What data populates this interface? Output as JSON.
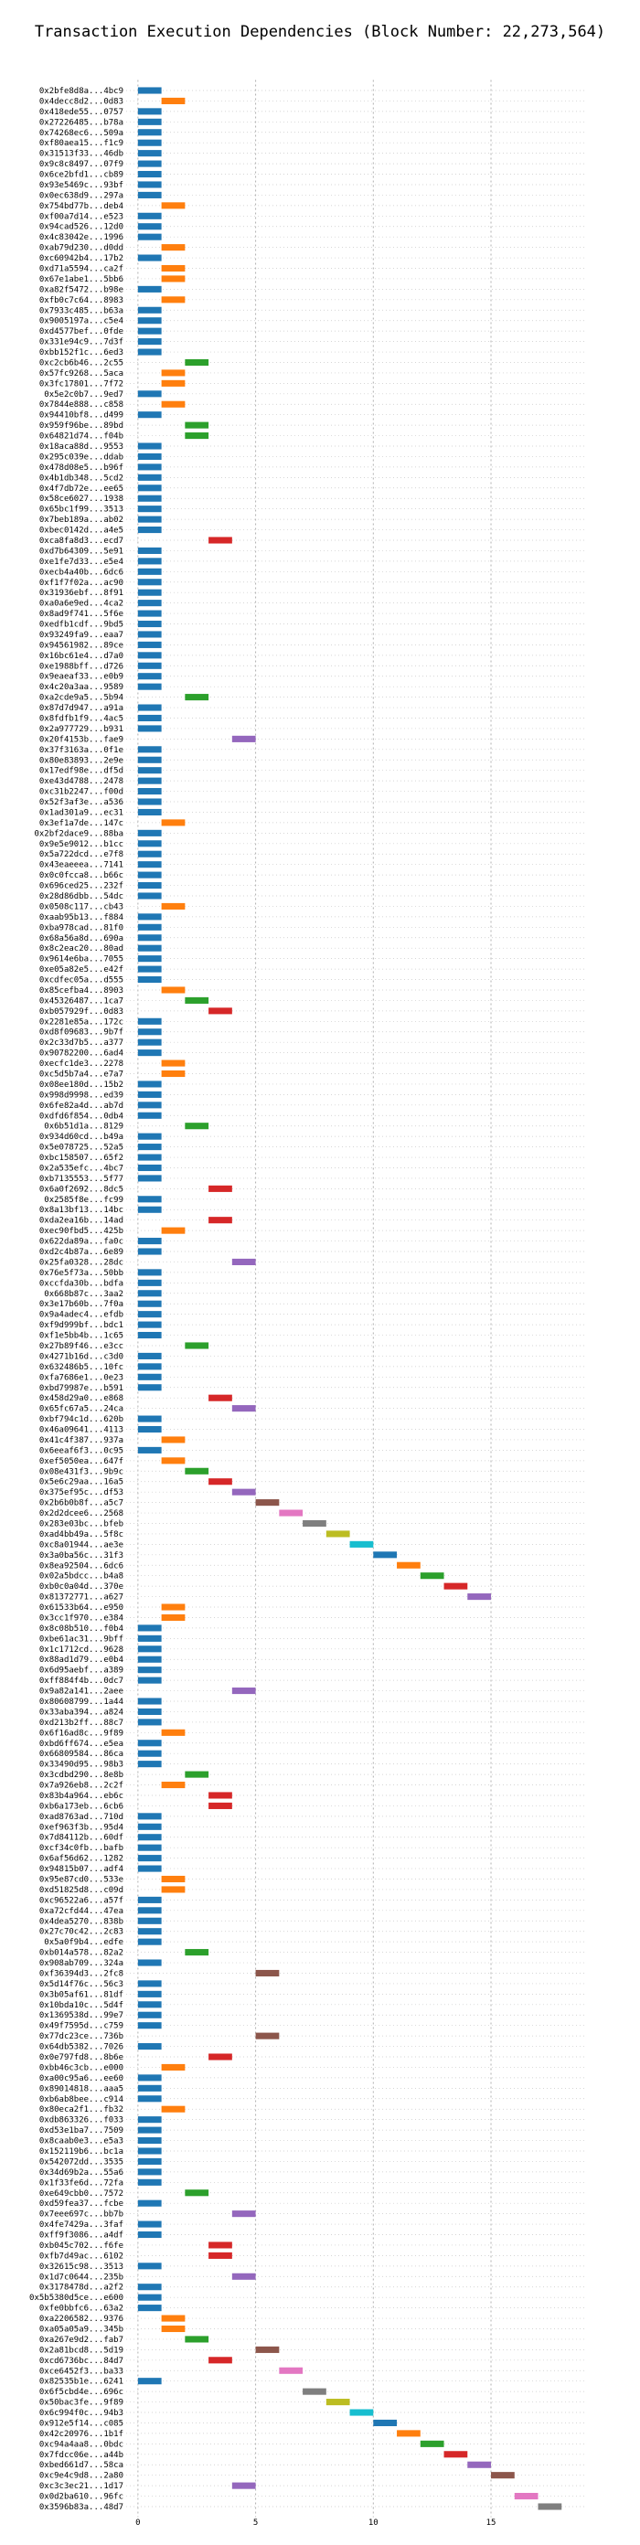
{
  "chart_data": {
    "type": "bar",
    "orientation": "horizontal",
    "title": "Transaction Execution Dependencies (Block Number: 22,273,564)",
    "xlabel": "",
    "ylabel": "",
    "xlim": [
      -0.5,
      19
    ],
    "xticks": [
      0,
      5,
      10,
      15
    ],
    "grid": true,
    "palette": [
      "#1f77b4",
      "#ff7f0e",
      "#2ca02c",
      "#d62728",
      "#9467bd",
      "#8c564b",
      "#e377c2",
      "#7f7f7f",
      "#bcbd22",
      "#17becf"
    ],
    "bar_width": 1,
    "transactions": [
      {
        "label": "0x2bfe8d8a...4bc9",
        "start": 0
      },
      {
        "label": "0x4decc8d2...0d83",
        "start": 1
      },
      {
        "label": "0x418ede55...0757",
        "start": 0
      },
      {
        "label": "0x27226485...b78a",
        "start": 0
      },
      {
        "label": "0x74268ec6...509a",
        "start": 0
      },
      {
        "label": "0xf80aea15...f1c9",
        "start": 0
      },
      {
        "label": "0x31513f33...46db",
        "start": 0
      },
      {
        "label": "0x9c8c8497...07f9",
        "start": 0
      },
      {
        "label": "0x6ce2bfd1...cb89",
        "start": 0
      },
      {
        "label": "0x93e5469c...93bf",
        "start": 0
      },
      {
        "label": "0x0ec638d9...297a",
        "start": 0
      },
      {
        "label": "0x754bd77b...deb4",
        "start": 1
      },
      {
        "label": "0xf00a7d14...e523",
        "start": 0
      },
      {
        "label": "0x94cad526...12d0",
        "start": 0
      },
      {
        "label": "0x4c83042e...1996",
        "start": 0
      },
      {
        "label": "0xab79d230...d0dd",
        "start": 1
      },
      {
        "label": "0xc60942b4...17b2",
        "start": 0
      },
      {
        "label": "0xd71a5594...ca2f",
        "start": 1
      },
      {
        "label": "0x67e1abe1...5bb6",
        "start": 1
      },
      {
        "label": "0xa82f5472...b98e",
        "start": 0
      },
      {
        "label": "0xfb0c7c64...8983",
        "start": 1
      },
      {
        "label": "0x7933c485...b63a",
        "start": 0
      },
      {
        "label": "0x9005197a...c5e4",
        "start": 0
      },
      {
        "label": "0xd4577bef...0fde",
        "start": 0
      },
      {
        "label": "0x331e94c9...7d3f",
        "start": 0
      },
      {
        "label": "0xbb152f1c...6ed3",
        "start": 0
      },
      {
        "label": "0xc2cb6b46...2c55",
        "start": 2
      },
      {
        "label": "0x57fc9268...5aca",
        "start": 1
      },
      {
        "label": "0x3fc17801...7f72",
        "start": 1
      },
      {
        "label": "0x5e2c0b7...9ed7",
        "start": 0
      },
      {
        "label": "0x7844e888...c858",
        "start": 1
      },
      {
        "label": "0x94410bf8...d499",
        "start": 0
      },
      {
        "label": "0x959f96be...89bd",
        "start": 2
      },
      {
        "label": "0x64821d74...f04b",
        "start": 2
      },
      {
        "label": "0x18aca88d...9553",
        "start": 0
      },
      {
        "label": "0x295c039e...ddab",
        "start": 0
      },
      {
        "label": "0x478d08e5...b96f",
        "start": 0
      },
      {
        "label": "0x4b1db348...5cd2",
        "start": 0
      },
      {
        "label": "0x4f7db72e...ee65",
        "start": 0
      },
      {
        "label": "0x58ce6027...1938",
        "start": 0
      },
      {
        "label": "0x65bc1f99...3513",
        "start": 0
      },
      {
        "label": "0x7beb189a...ab02",
        "start": 0
      },
      {
        "label": "0xbec0142d...a4e5",
        "start": 0
      },
      {
        "label": "0xca8fa8d3...ecd7",
        "start": 3
      },
      {
        "label": "0xd7b64309...5e91",
        "start": 0
      },
      {
        "label": "0xe1fe7d33...e5e4",
        "start": 0
      },
      {
        "label": "0xecb4a40b...6dc6",
        "start": 0
      },
      {
        "label": "0xf1f7f02a...ac90",
        "start": 0
      },
      {
        "label": "0x31936ebf...8f91",
        "start": 0
      },
      {
        "label": "0xa0a6e9ed...4ca2",
        "start": 0
      },
      {
        "label": "0x8ad9f741...5f6e",
        "start": 0
      },
      {
        "label": "0xedfb1cdf...9bd5",
        "start": 0
      },
      {
        "label": "0x93249fa9...eaa7",
        "start": 0
      },
      {
        "label": "0x94561982...89ce",
        "start": 0
      },
      {
        "label": "0x16bc61e4...d7a0",
        "start": 0
      },
      {
        "label": "0xe1988bff...d726",
        "start": 0
      },
      {
        "label": "0x9eaeaf33...e0b9",
        "start": 0
      },
      {
        "label": "0x4c20a3aa...9589",
        "start": 0
      },
      {
        "label": "0xa2cde9a5...5b94",
        "start": 2
      },
      {
        "label": "0x87d7d947...a91a",
        "start": 0
      },
      {
        "label": "0x8fdfb1f9...4ac5",
        "start": 0
      },
      {
        "label": "0x2a977729...b931",
        "start": 0
      },
      {
        "label": "0x20f4153b...fae9",
        "start": 4
      },
      {
        "label": "0x37f3163a...0f1e",
        "start": 0
      },
      {
        "label": "0x80e83893...2e9e",
        "start": 0
      },
      {
        "label": "0x17edf98e...df5d",
        "start": 0
      },
      {
        "label": "0xe43d4788...2478",
        "start": 0
      },
      {
        "label": "0xc31b2247...f00d",
        "start": 0
      },
      {
        "label": "0x52f3af3e...a536",
        "start": 0
      },
      {
        "label": "0x1ad301a9...ec31",
        "start": 0
      },
      {
        "label": "0x3ef1a7de...147c",
        "start": 1
      },
      {
        "label": "0x2bf2dace9...88ba",
        "start": 0
      },
      {
        "label": "0x9e5e9012...b1cc",
        "start": 0
      },
      {
        "label": "0x5a722dcd...e7f8",
        "start": 0
      },
      {
        "label": "0x43eaeeea...7141",
        "start": 0
      },
      {
        "label": "0x0c0fcca8...b66c",
        "start": 0
      },
      {
        "label": "0x696ced25...232f",
        "start": 0
      },
      {
        "label": "0x28d86dbb...54dc",
        "start": 0
      },
      {
        "label": "0x0508c117...cb43",
        "start": 1
      },
      {
        "label": "0xaab95b13...f884",
        "start": 0
      },
      {
        "label": "0xba978cad...81f0",
        "start": 0
      },
      {
        "label": "0x68a56a8d...690a",
        "start": 0
      },
      {
        "label": "0x8c2eac20...80ad",
        "start": 0
      },
      {
        "label": "0x9614e6ba...7055",
        "start": 0
      },
      {
        "label": "0xe05a82e5...e42f",
        "start": 0
      },
      {
        "label": "0xcdfec05a...d555",
        "start": 0
      },
      {
        "label": "0x85cefba4...8903",
        "start": 1
      },
      {
        "label": "0x45326487...1ca7",
        "start": 2
      },
      {
        "label": "0xb057929f...0d83",
        "start": 3
      },
      {
        "label": "0x2281e85a...172c",
        "start": 0
      },
      {
        "label": "0xd8f09683...9b7f",
        "start": 0
      },
      {
        "label": "0x2c33d7b5...a377",
        "start": 0
      },
      {
        "label": "0x90782200...6ad4",
        "start": 0
      },
      {
        "label": "0xecfc1de3...2278",
        "start": 1
      },
      {
        "label": "0xc5d5b7a4...e7a7",
        "start": 1
      },
      {
        "label": "0x08ee180d...15b2",
        "start": 0
      },
      {
        "label": "0x998d9998...ed39",
        "start": 0
      },
      {
        "label": "0x6fe82a4d...ab7d",
        "start": 0
      },
      {
        "label": "0xdfd6f854...0db4",
        "start": 0
      },
      {
        "label": "0x6b51d1a...8129",
        "start": 2
      },
      {
        "label": "0x934d60cd...b49a",
        "start": 0
      },
      {
        "label": "0x5e078725...52a5",
        "start": 0
      },
      {
        "label": "0xbc158507...65f2",
        "start": 0
      },
      {
        "label": "0x2a535efc...4bc7",
        "start": 0
      },
      {
        "label": "0xb7135553...5f77",
        "start": 0
      },
      {
        "label": "0x6a0f2692...8dc5",
        "start": 3
      },
      {
        "label": "0x2585f8e...fc99",
        "start": 0
      },
      {
        "label": "0x8a13bf13...14bc",
        "start": 0
      },
      {
        "label": "0xda2ea16b...14ad",
        "start": 3
      },
      {
        "label": "0xec90fbd5...425b",
        "start": 1
      },
      {
        "label": "0x622da89a...fa0c",
        "start": 0
      },
      {
        "label": "0xd2c4b87a...6e89",
        "start": 0
      },
      {
        "label": "0x25fa0328...28dc",
        "start": 4
      },
      {
        "label": "0x76e5f73a...50bb",
        "start": 0
      },
      {
        "label": "0xccfda30b...bdfa",
        "start": 0
      },
      {
        "label": "0x668b87c...3aa2",
        "start": 0
      },
      {
        "label": "0x3e17b60b...7f0a",
        "start": 0
      },
      {
        "label": "0x9a4adec4...efdb",
        "start": 0
      },
      {
        "label": "0xf9d999bf...bdc1",
        "start": 0
      },
      {
        "label": "0xf1e5bb4b...1c65",
        "start": 0
      },
      {
        "label": "0x27b89f46...e3cc",
        "start": 2
      },
      {
        "label": "0x4271b16d...c3d0",
        "start": 0
      },
      {
        "label": "0x632486b5...10fc",
        "start": 0
      },
      {
        "label": "0xfa7686e1...0e23",
        "start": 0
      },
      {
        "label": "0xbd79987e...b591",
        "start": 0
      },
      {
        "label": "0x458d29a0...e868",
        "start": 3
      },
      {
        "label": "0x65fc67a5...24ca",
        "start": 4
      },
      {
        "label": "0xbf794c1d...620b",
        "start": 0
      },
      {
        "label": "0x46a09641...4113",
        "start": 0
      },
      {
        "label": "0x41c4f387...937a",
        "start": 1
      },
      {
        "label": "0x6eeaf6f3...0c95",
        "start": 0
      },
      {
        "label": "0xef5050ea...647f",
        "start": 1
      },
      {
        "label": "0x08e431f3...9b9c",
        "start": 2
      },
      {
        "label": "0x5e6c29aa...16a5",
        "start": 3
      },
      {
        "label": "0x375ef95c...df53",
        "start": 4
      },
      {
        "label": "0x2b6b0b8f...a5c7",
        "start": 5
      },
      {
        "label": "0x2d2dcee6...2568",
        "start": 6
      },
      {
        "label": "0x283e03bc...bfeb",
        "start": 7
      },
      {
        "label": "0xad4bb49a...5f8c",
        "start": 8
      },
      {
        "label": "0xc8a01944...ae3e",
        "start": 9
      },
      {
        "label": "0x3a0ba56c...31f3",
        "start": 10
      },
      {
        "label": "0x8ea92504...6dc6",
        "start": 11
      },
      {
        "label": "0x02a5bdcc...b4a8",
        "start": 12
      },
      {
        "label": "0xb0c0a04d...370e",
        "start": 13
      },
      {
        "label": "0x81372771...a627",
        "start": 14
      },
      {
        "label": "0x61533b64...e950",
        "start": 1
      },
      {
        "label": "0x3cc1f970...e384",
        "start": 1
      },
      {
        "label": "0x8c08b510...f0b4",
        "start": 0
      },
      {
        "label": "0xbe61ac31...9bff",
        "start": 0
      },
      {
        "label": "0x1c1712cd...9628",
        "start": 0
      },
      {
        "label": "0x88ad1d79...e0b4",
        "start": 0
      },
      {
        "label": "0x6d95aebf...a389",
        "start": 0
      },
      {
        "label": "0xff884f4b...0dc7",
        "start": 0
      },
      {
        "label": "0x9a82a141...2aee",
        "start": 4
      },
      {
        "label": "0x80608799...1a44",
        "start": 0
      },
      {
        "label": "0x33aba394...a824",
        "start": 0
      },
      {
        "label": "0xd213b2ff...88c7",
        "start": 0
      },
      {
        "label": "0x6f16ad8c...9f89",
        "start": 1
      },
      {
        "label": "0xbd6ff674...e5ea",
        "start": 0
      },
      {
        "label": "0x66809584...86ca",
        "start": 0
      },
      {
        "label": "0x33490d95...98b3",
        "start": 0
      },
      {
        "label": "0x3cdbd290...8e8b",
        "start": 2
      },
      {
        "label": "0x7a926eb8...2c2f",
        "start": 1
      },
      {
        "label": "0x83b4a964...eb6c",
        "start": 3
      },
      {
        "label": "0xb6a173eb...6cb6",
        "start": 3
      },
      {
        "label": "0xad8763ad...710d",
        "start": 0
      },
      {
        "label": "0xef963f3b...95d4",
        "start": 0
      },
      {
        "label": "0x7d84112b...60df",
        "start": 0
      },
      {
        "label": "0xcf34c0fb...bafb",
        "start": 0
      },
      {
        "label": "0x6af56d62...1282",
        "start": 0
      },
      {
        "label": "0x94815b07...adf4",
        "start": 0
      },
      {
        "label": "0x95e87cd0...533e",
        "start": 1
      },
      {
        "label": "0xd51825d8...c09d",
        "start": 1
      },
      {
        "label": "0xc96522a6...a57f",
        "start": 0
      },
      {
        "label": "0xa72cfd44...47ea",
        "start": 0
      },
      {
        "label": "0x4dea5270...838b",
        "start": 0
      },
      {
        "label": "0x27c70c42...2c83",
        "start": 0
      },
      {
        "label": "0x5a0f9b4...edfe",
        "start": 0
      },
      {
        "label": "0xb014a578...82a2",
        "start": 2
      },
      {
        "label": "0x908ab709...324a",
        "start": 0
      },
      {
        "label": "0xf36394d3...2fc8",
        "start": 5
      },
      {
        "label": "0x5d14f76c...56c3",
        "start": 0
      },
      {
        "label": "0x3b05af61...81df",
        "start": 0
      },
      {
        "label": "0x10bda10c...5d4f",
        "start": 0
      },
      {
        "label": "0x1369538d...99e7",
        "start": 0
      },
      {
        "label": "0x49f7595d...c759",
        "start": 0
      },
      {
        "label": "0x77dc23ce...736b",
        "start": 5
      },
      {
        "label": "0x64db5382...7026",
        "start": 0
      },
      {
        "label": "0x0e797fd8...8b6e",
        "start": 3
      },
      {
        "label": "0xbb46c3cb...e000",
        "start": 1
      },
      {
        "label": "0xa00c95a6...ee60",
        "start": 0
      },
      {
        "label": "0x89014818...aaa5",
        "start": 0
      },
      {
        "label": "0xb6ab8bee...c914",
        "start": 0
      },
      {
        "label": "0x80eca2f1...fb32",
        "start": 1
      },
      {
        "label": "0xdb863326...f033",
        "start": 0
      },
      {
        "label": "0xd53e1ba7...7509",
        "start": 0
      },
      {
        "label": "0x8caab0e3...e5a3",
        "start": 0
      },
      {
        "label": "0x152119b6...bc1a",
        "start": 0
      },
      {
        "label": "0x542072dd...3535",
        "start": 0
      },
      {
        "label": "0x34d69b2a...55a6",
        "start": 0
      },
      {
        "label": "0x1f33fe6d...72fa",
        "start": 0
      },
      {
        "label": "0xe649cbb0...7572",
        "start": 2
      },
      {
        "label": "0xd59fea37...fcbe",
        "start": 0
      },
      {
        "label": "0x7eee697c...bb7b",
        "start": 4
      },
      {
        "label": "0x4fe7429a...3faf",
        "start": 0
      },
      {
        "label": "0xff9f3086...a4df",
        "start": 0
      },
      {
        "label": "0xb045c702...f6fe",
        "start": 3
      },
      {
        "label": "0xfb7d49ac...6102",
        "start": 3
      },
      {
        "label": "0x32615c98...3513",
        "start": 0
      },
      {
        "label": "0x1d7c0644...235b",
        "start": 4
      },
      {
        "label": "0x3178478d...a2f2",
        "start": 0
      },
      {
        "label": "0x5b5380d5ce...e600",
        "start": 0
      },
      {
        "label": "0xfe0bbfc6...63a2",
        "start": 0
      },
      {
        "label": "0xa2206582...9376",
        "start": 1
      },
      {
        "label": "0xa05a05a9...345b",
        "start": 1
      },
      {
        "label": "0xa267e9d2...fab7",
        "start": 2
      },
      {
        "label": "0x2a81bcd8...5d19",
        "start": 5
      },
      {
        "label": "0xcd6736bc...84d7",
        "start": 3
      },
      {
        "label": "0xce6452f3...ba33",
        "start": 6
      },
      {
        "label": "0x82535b1e...6241",
        "start": 0
      },
      {
        "label": "0x6f5cbd4e...696c",
        "start": 7
      },
      {
        "label": "0x50bac3fe...9f89",
        "start": 8
      },
      {
        "label": "0x6c994f0c...94b3",
        "start": 9
      },
      {
        "label": "0x912e5f14...c085",
        "start": 10
      },
      {
        "label": "0x42c20976...1b1f",
        "start": 11
      },
      {
        "label": "0xc94a4aa8...0bdc",
        "start": 12
      },
      {
        "label": "0x7fdcc06e...a44b",
        "start": 13
      },
      {
        "label": "0xbed661d7...58ca",
        "start": 14
      },
      {
        "label": "0xc9e4c9d8...2a80",
        "start": 15
      },
      {
        "label": "0xc3c3ec21...1d17",
        "start": 4
      },
      {
        "label": "0x0d2ba610...96fc",
        "start": 16
      },
      {
        "label": "0x3596b83a...48d7",
        "start": 17
      }
    ]
  }
}
